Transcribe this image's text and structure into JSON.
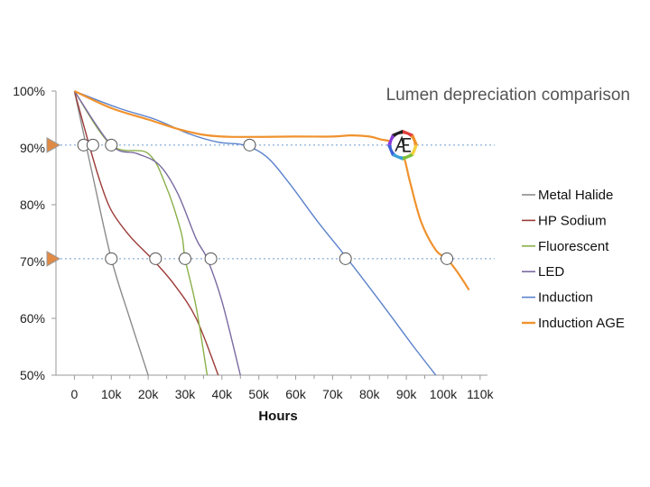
{
  "chart_data": {
    "type": "line",
    "title": "Lumen depreciation comparison",
    "xlabel": "Hours",
    "ylabel": "",
    "xlim": [
      -5000,
      112000
    ],
    "ylim": [
      50,
      100
    ],
    "x_ticks": [
      0,
      10000,
      20000,
      30000,
      40000,
      50000,
      60000,
      70000,
      80000,
      90000,
      100000,
      110000
    ],
    "x_tick_labels": [
      "0",
      "10k",
      "20k",
      "30k",
      "40k",
      "50k",
      "60k",
      "70k",
      "80k",
      "90k",
      "100k",
      "110k"
    ],
    "y_ticks": [
      50,
      60,
      70,
      80,
      90,
      100
    ],
    "y_tick_labels": [
      "50%",
      "60%",
      "70%",
      "80%",
      "90%",
      "100%"
    ],
    "reference_lines": [
      90.5,
      70.5
    ],
    "grid": false,
    "legend_position": "right",
    "series": [
      {
        "name": "Metal Halide",
        "color": "#8c8c8c",
        "points": [
          [
            0,
            100
          ],
          [
            5000,
            85
          ],
          [
            10000,
            70.5
          ],
          [
            15000,
            60
          ],
          [
            20000,
            50
          ]
        ]
      },
      {
        "name": "HP Sodium",
        "color": "#9b3a37",
        "points": [
          [
            0,
            100
          ],
          [
            4000,
            90.5
          ],
          [
            7000,
            84
          ],
          [
            10000,
            79
          ],
          [
            15000,
            74.5
          ],
          [
            21000,
            70.5
          ],
          [
            27000,
            66
          ],
          [
            33000,
            60
          ],
          [
            39000,
            50
          ]
        ]
      },
      {
        "name": "Fluorescent",
        "color": "#8ab04a",
        "points": [
          [
            0,
            100
          ],
          [
            10000,
            90.5
          ],
          [
            20000,
            89
          ],
          [
            25000,
            83
          ],
          [
            29000,
            75
          ],
          [
            30000,
            70.5
          ],
          [
            33000,
            62
          ],
          [
            36000,
            50
          ]
        ]
      },
      {
        "name": "LED",
        "color": "#7a6aa0",
        "points": [
          [
            0,
            100
          ],
          [
            10000,
            90.5
          ],
          [
            17000,
            89
          ],
          [
            23000,
            87
          ],
          [
            28000,
            82
          ],
          [
            33000,
            74
          ],
          [
            36000,
            70.5
          ],
          [
            40000,
            63
          ],
          [
            45000,
            50
          ]
        ]
      },
      {
        "name": "Induction",
        "color": "#5b82cc",
        "points": [
          [
            0,
            100
          ],
          [
            12000,
            97
          ],
          [
            22000,
            95
          ],
          [
            31000,
            92.5
          ],
          [
            39000,
            91
          ],
          [
            46000,
            90.5
          ],
          [
            52000,
            88.5
          ],
          [
            58000,
            84
          ],
          [
            66000,
            77
          ],
          [
            74000,
            70.5
          ],
          [
            84000,
            62
          ],
          [
            92000,
            55
          ],
          [
            98000,
            50
          ]
        ]
      },
      {
        "name": "Induction AGE",
        "color": "#f0922e",
        "points": [
          [
            0,
            100
          ],
          [
            10000,
            97
          ],
          [
            20000,
            95
          ],
          [
            30000,
            93
          ],
          [
            40000,
            92
          ],
          [
            60000,
            92
          ],
          [
            70000,
            92
          ],
          [
            75000,
            92.2
          ],
          [
            80000,
            92
          ],
          [
            83000,
            91.5
          ],
          [
            86000,
            91
          ],
          [
            89000,
            89
          ],
          [
            91000,
            84
          ],
          [
            94000,
            77
          ],
          [
            98000,
            72
          ],
          [
            101000,
            70.5
          ],
          [
            104000,
            68
          ],
          [
            107000,
            65
          ]
        ]
      }
    ],
    "markers_at_90": [
      2500,
      5000,
      10000,
      47500
    ],
    "markers_at_70": [
      10000,
      22000,
      30000,
      37000,
      73500,
      101000
    ]
  }
}
